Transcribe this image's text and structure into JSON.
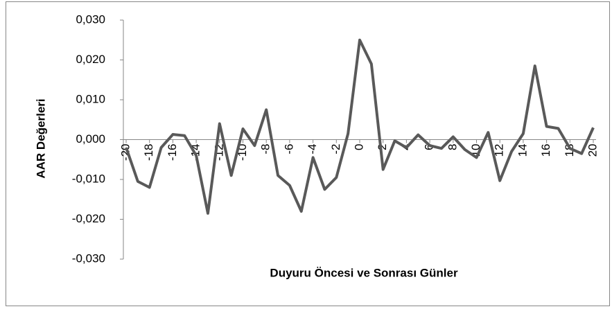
{
  "chart_data": {
    "type": "line",
    "xlabel": "Duyuru Öncesi ve Sonrası Günler",
    "ylabel": "AAR Değerleri",
    "x": [
      -20,
      -19,
      -18,
      -17,
      -16,
      -15,
      -14,
      -13,
      -12,
      -11,
      -10,
      -9,
      -8,
      -7,
      -6,
      -5,
      -4,
      -3,
      -2,
      -1,
      0,
      1,
      2,
      3,
      4,
      5,
      6,
      7,
      8,
      9,
      10,
      11,
      12,
      13,
      14,
      15,
      16,
      17,
      18,
      19,
      20
    ],
    "series": [
      {
        "name": "AAR",
        "color": "#595959",
        "values": [
          -0.002,
          -0.0105,
          -0.012,
          -0.002,
          0.0013,
          0.001,
          -0.004,
          -0.0185,
          0.004,
          -0.009,
          0.0027,
          -0.0015,
          0.0075,
          -0.009,
          -0.0115,
          -0.018,
          -0.0045,
          -0.0125,
          -0.0095,
          0.0015,
          0.025,
          0.019,
          -0.0075,
          -0.0003,
          -0.002,
          0.0012,
          -0.0015,
          -0.0022,
          0.0007,
          -0.0025,
          -0.0045,
          0.0018,
          -0.0103,
          -0.003,
          0.0015,
          0.0185,
          0.0033,
          0.0028,
          -0.0022,
          -0.0035,
          0.003
        ]
      }
    ],
    "xlim": [
      -20,
      20
    ],
    "xticks": [
      -20,
      -18,
      -16,
      -14,
      -12,
      -10,
      -8,
      -6,
      -4,
      -2,
      0,
      2,
      4,
      6,
      8,
      10,
      12,
      14,
      16,
      18,
      20
    ],
    "ylim": [
      -0.03,
      0.03
    ],
    "yticks": [
      {
        "value": -0.03,
        "label": "-0,030"
      },
      {
        "value": -0.02,
        "label": "-0,020"
      },
      {
        "value": -0.01,
        "label": "-0,010"
      },
      {
        "value": 0,
        "label": "0,000"
      },
      {
        "value": 0.01,
        "label": "0,010"
      },
      {
        "value": 0.02,
        "label": "0,020"
      },
      {
        "value": 0.03,
        "label": "0,030"
      }
    ],
    "grid": false
  }
}
